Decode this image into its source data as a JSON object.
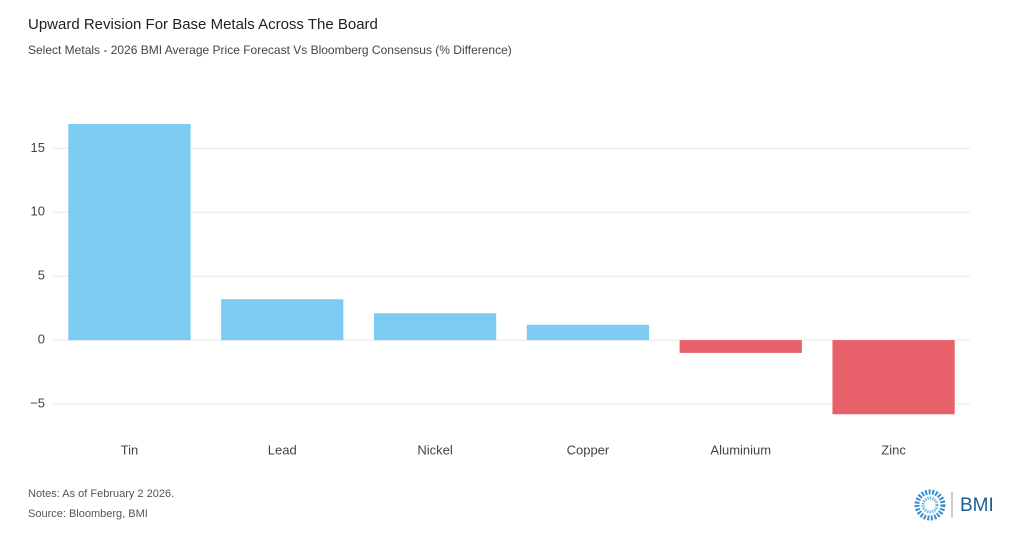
{
  "chart_data": {
    "type": "bar",
    "title": "Upward Revision For Base Metals Across The Board",
    "subtitle": "Select Metals - 2026 BMI Average Price Forecast Vs Bloomberg Consensus (% Difference)",
    "categories": [
      "Tin",
      "Lead",
      "Nickel",
      "Copper",
      "Aluminium",
      "Zinc"
    ],
    "values": [
      16.9,
      3.2,
      2.1,
      1.2,
      -1.0,
      -5.8
    ],
    "color": "#7ccbf3",
    "negative_color": "#e8606a",
    "ylim": [
      -7,
      18
    ],
    "yticks": [
      {
        "value": -5,
        "label": "−5"
      },
      0,
      5,
      10,
      15
    ],
    "grid": true,
    "notes": "Notes: As of February 2 2026.",
    "source": "Source: Bloomberg, BMI",
    "logo": "BMI"
  }
}
